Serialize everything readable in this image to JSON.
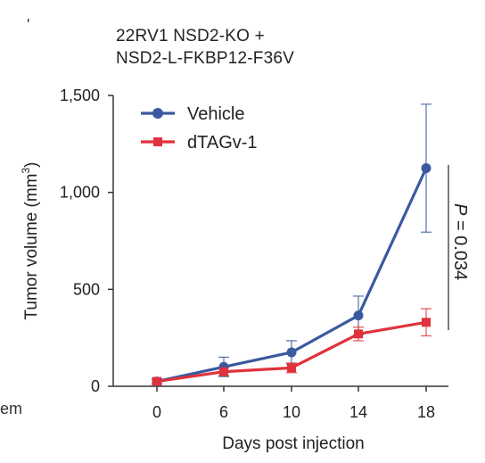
{
  "left_fragments": {
    "top": "'",
    "bottom": "em"
  },
  "chart_data": {
    "type": "line",
    "title_line1": "22RV1 NSD2-KO +",
    "title_line2": "NSD2-L-FKBP12-F36V",
    "xlabel": "Days post injection",
    "ylabel_main": "Tumor volume (mm",
    "ylabel_sup": "3",
    "ylabel_close": ")",
    "x": [
      0,
      6,
      10,
      14,
      18
    ],
    "x_tick_labels": [
      "0",
      "6",
      "10",
      "14",
      "18"
    ],
    "ylim": [
      0,
      1500
    ],
    "y_ticks": [
      0,
      500,
      1000,
      1500
    ],
    "y_tick_labels": [
      "0",
      "500",
      "1,000",
      "1,500"
    ],
    "legend_position": "top-left",
    "series": [
      {
        "name": "Vehicle",
        "color": "#3a5a9e",
        "marker": "circle",
        "values": [
          25,
          100,
          175,
          365,
          1125
        ],
        "error": [
          15,
          50,
          60,
          100,
          330
        ]
      },
      {
        "name": "dTAGv-1",
        "color": "#e0323c",
        "marker": "square",
        "values": [
          25,
          75,
          95,
          270,
          330
        ],
        "error": [
          10,
          20,
          25,
          35,
          70
        ]
      }
    ],
    "annotation": {
      "text": "P = 0.034",
      "p_italic": "P",
      "rest": " = 0.034"
    }
  }
}
